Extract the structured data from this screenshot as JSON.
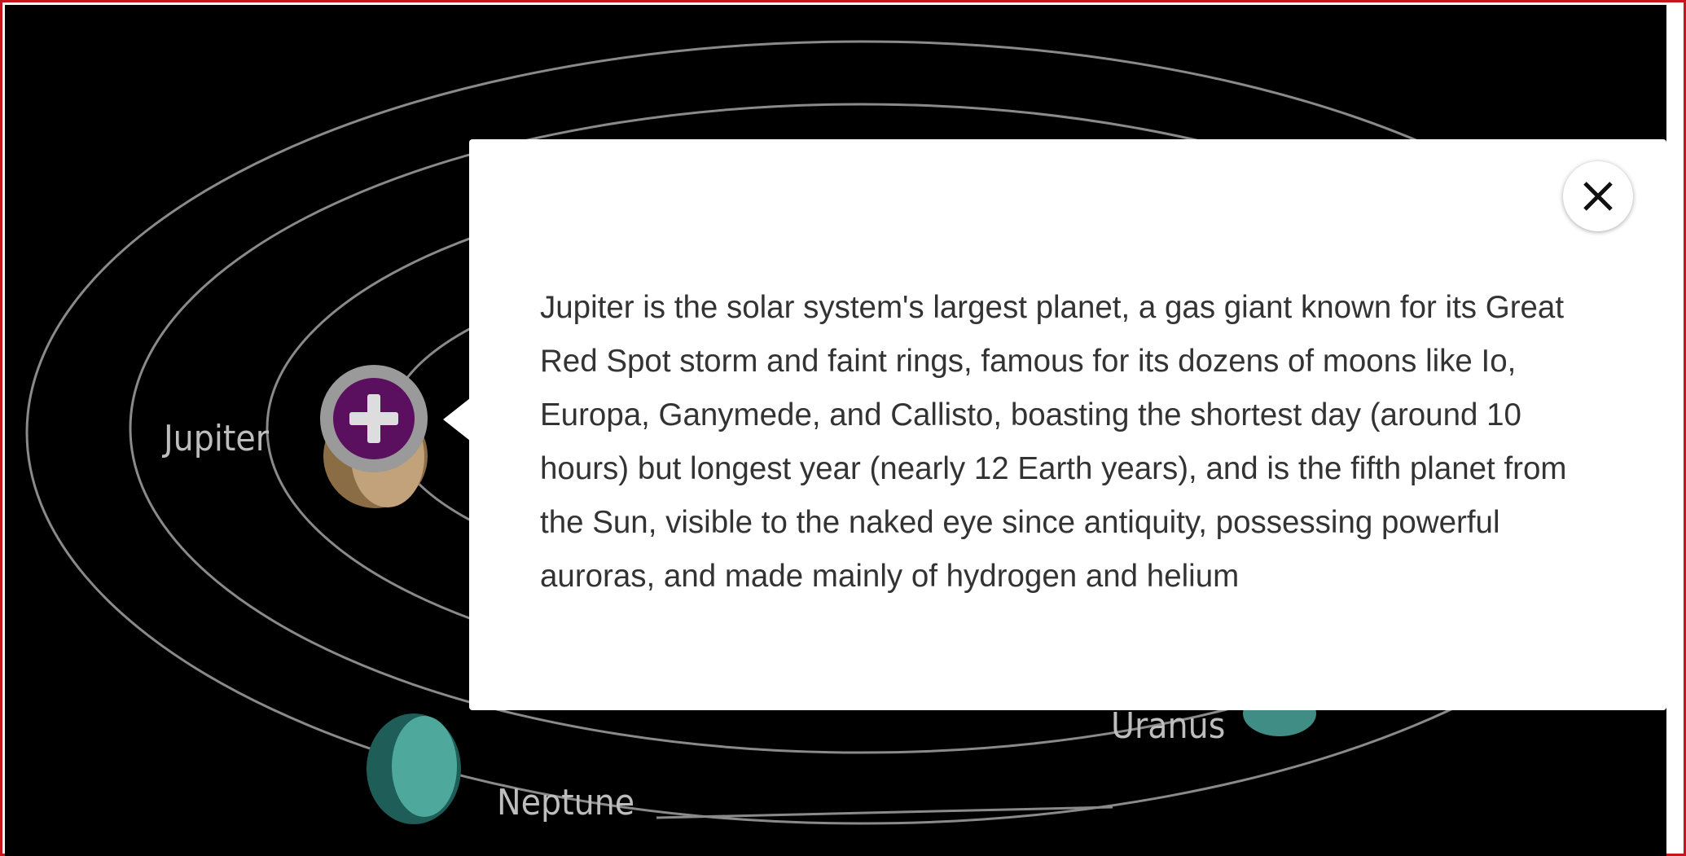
{
  "planets": {
    "labels": [
      "Jupiter",
      "Uranus",
      "Neptune"
    ]
  },
  "popup": {
    "text": "Jupiter is the solar system's largest planet, a gas giant known for its Great Red Spot storm and faint rings, famous for its dozens of moons like Io, Europa, Ganymede, and Callisto, boasting the shortest day (around 10 hours) but longest year (nearly 12 Earth years), and is the fifth planet from the Sun, visible to the naked eye since antiquity, possessing powerful auroras, and made mainly of hydrogen and helium"
  }
}
